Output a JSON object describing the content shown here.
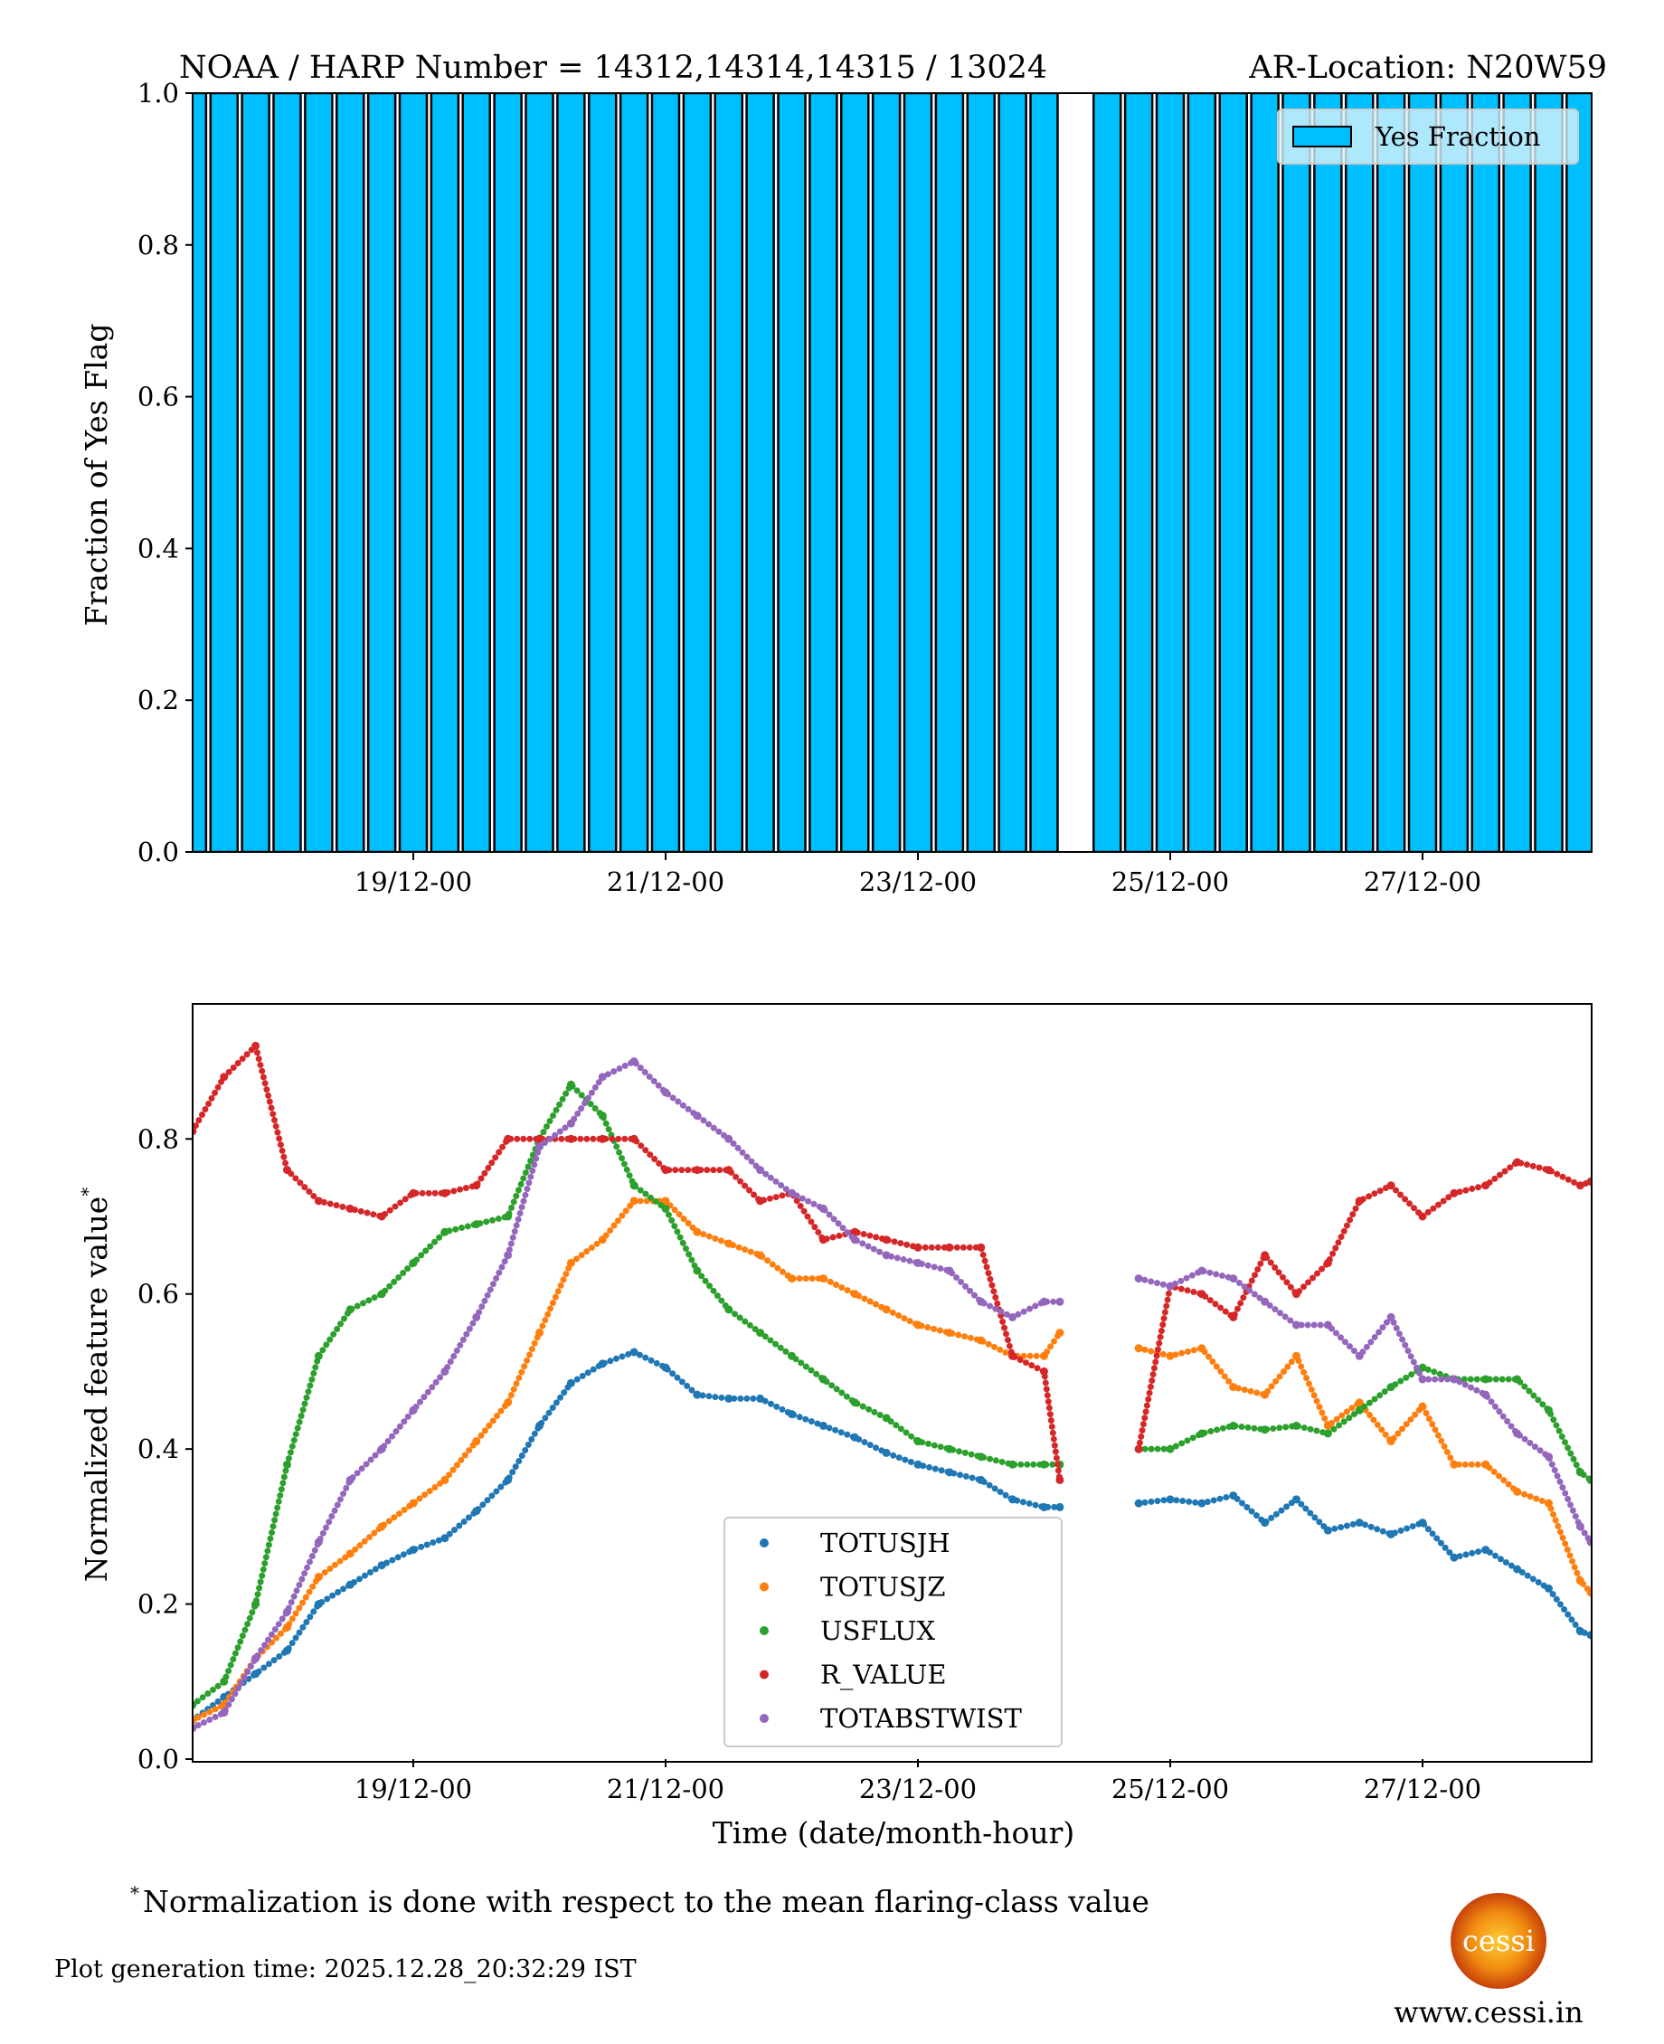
{
  "header": {
    "title_left": "NOAA / HARP Number = 14312,14314,14315 / 13024",
    "title_right": "AR-Location: N20W59"
  },
  "footer": {
    "footnote_mark": "*",
    "footnote": "Normalization is done with respect to the mean flaring-class value",
    "generation_time": "Plot generation time: 2025.12.28_20:32:29 IST",
    "logo_text": "cessi",
    "website": "www.cessi.in"
  },
  "chart_data": [
    {
      "type": "bar",
      "ylabel": "Fraction of Yes Flag",
      "xlabel": "",
      "ylim": [
        0,
        1.0
      ],
      "yticks": [
        "0.0",
        "0.2",
        "0.4",
        "0.6",
        "0.8",
        "1.0"
      ],
      "xticks": [
        "19/12-00",
        "21/12-00",
        "23/12-00",
        "25/12-00",
        "27/12-00"
      ],
      "xlim": [
        "17/12-06",
        "28/12-08"
      ],
      "legend": {
        "placement": "top-right",
        "entries": [
          "Yes Fraction"
        ]
      },
      "color": "#00bfff",
      "edge_color": "#000000",
      "x": [
        "17/12-06",
        "17/12-12",
        "17/12-18",
        "18/12-00",
        "18/12-06",
        "18/12-12",
        "18/12-18",
        "19/12-00",
        "19/12-06",
        "19/12-12",
        "19/12-18",
        "20/12-00",
        "20/12-06",
        "20/12-12",
        "20/12-18",
        "21/12-00",
        "21/12-06",
        "21/12-12",
        "21/12-18",
        "22/12-00",
        "22/12-06",
        "22/12-12",
        "22/12-18",
        "23/12-00",
        "23/12-06",
        "23/12-12",
        "23/12-18",
        "24/12-00",
        "24/12-06",
        "24/12-12",
        "24/12-18",
        "25/12-00",
        "25/12-06",
        "25/12-12",
        "25/12-18",
        "26/12-00",
        "26/12-06",
        "26/12-12",
        "26/12-18",
        "27/12-00",
        "27/12-06",
        "27/12-12",
        "27/12-18",
        "28/12-00",
        "28/12-06"
      ],
      "values": [
        1,
        1,
        1,
        1,
        1,
        1,
        1,
        1,
        1,
        1,
        1,
        1,
        1,
        1,
        1,
        1,
        1,
        1,
        1,
        1,
        1,
        1,
        1,
        1,
        1,
        1,
        1,
        1,
        0,
        1,
        1,
        1,
        1,
        1,
        1,
        1,
        1,
        1,
        1,
        1,
        1,
        1,
        1,
        1,
        1
      ]
    },
    {
      "type": "scatter",
      "xlabel": "Time (date/month-hour)",
      "ylabel": "Normalized feature value",
      "ylabel_mark": "*",
      "ylim": [
        0,
        0.98
      ],
      "yticks": [
        "0.0",
        "0.2",
        "0.4",
        "0.6",
        "0.8"
      ],
      "xticks": [
        "19/12-00",
        "21/12-00",
        "23/12-00",
        "25/12-00",
        "27/12-00"
      ],
      "xlim": [
        "17/12-06",
        "28/12-08"
      ],
      "legend": {
        "placement": "bottom-center"
      },
      "x": [
        "17/12-06",
        "17/12-12",
        "17/12-18",
        "18/12-00",
        "18/12-06",
        "18/12-12",
        "18/12-18",
        "19/12-00",
        "19/12-06",
        "19/12-12",
        "19/12-18",
        "20/12-00",
        "20/12-06",
        "20/12-12",
        "20/12-18",
        "21/12-00",
        "21/12-06",
        "21/12-12",
        "21/12-18",
        "22/12-00",
        "22/12-06",
        "22/12-12",
        "22/12-18",
        "23/12-00",
        "23/12-06",
        "23/12-12",
        "23/12-18",
        "24/12-00",
        "24/12-03",
        "24/12-18",
        "25/12-00",
        "25/12-06",
        "25/12-12",
        "25/12-18",
        "26/12-00",
        "26/12-06",
        "26/12-12",
        "26/12-18",
        "27/12-00",
        "27/12-06",
        "27/12-12",
        "27/12-18",
        "28/12-00",
        "28/12-06",
        "28/12-08"
      ],
      "series": [
        {
          "name": "TOTUSJH",
          "color": "#1f77b4",
          "values": [
            0.05,
            0.08,
            0.11,
            0.14,
            0.2,
            0.225,
            0.25,
            0.27,
            0.285,
            0.32,
            0.36,
            0.43,
            0.485,
            0.51,
            0.525,
            0.505,
            0.47,
            0.465,
            0.465,
            0.445,
            0.43,
            0.415,
            0.395,
            0.38,
            0.37,
            0.36,
            0.335,
            0.325,
            0.325,
            0.33,
            0.335,
            0.33,
            0.34,
            0.305,
            0.335,
            0.295,
            0.305,
            0.29,
            0.305,
            0.26,
            0.27,
            0.245,
            0.22,
            0.165,
            0.16
          ]
        },
        {
          "name": "TOTUSJZ",
          "color": "#ff7f0e",
          "values": [
            0.05,
            0.07,
            0.13,
            0.17,
            0.235,
            0.265,
            0.3,
            0.33,
            0.36,
            0.41,
            0.46,
            0.55,
            0.64,
            0.67,
            0.72,
            0.72,
            0.68,
            0.665,
            0.65,
            0.62,
            0.62,
            0.6,
            0.58,
            0.56,
            0.55,
            0.54,
            0.52,
            0.52,
            0.55,
            0.53,
            0.52,
            0.53,
            0.48,
            0.47,
            0.52,
            0.43,
            0.46,
            0.41,
            0.455,
            0.38,
            0.38,
            0.345,
            0.33,
            0.23,
            0.215
          ]
        },
        {
          "name": "USFLUX",
          "color": "#2ca02c",
          "values": [
            0.07,
            0.1,
            0.2,
            0.38,
            0.52,
            0.58,
            0.6,
            0.64,
            0.68,
            0.69,
            0.7,
            0.8,
            0.87,
            0.83,
            0.74,
            0.71,
            0.63,
            0.58,
            0.55,
            0.52,
            0.49,
            0.46,
            0.44,
            0.41,
            0.4,
            0.39,
            0.38,
            0.38,
            0.38,
            0.4,
            0.4,
            0.42,
            0.43,
            0.425,
            0.43,
            0.42,
            0.45,
            0.48,
            0.505,
            0.49,
            0.49,
            0.49,
            0.45,
            0.37,
            0.36
          ]
        },
        {
          "name": "R_VALUE",
          "color": "#d62728",
          "values": [
            0.81,
            0.88,
            0.92,
            0.76,
            0.72,
            0.71,
            0.7,
            0.73,
            0.73,
            0.74,
            0.8,
            0.8,
            0.8,
            0.8,
            0.8,
            0.76,
            0.76,
            0.76,
            0.72,
            0.73,
            0.67,
            0.68,
            0.67,
            0.66,
            0.66,
            0.66,
            0.52,
            0.5,
            0.36,
            0.4,
            0.61,
            0.6,
            0.57,
            0.65,
            0.6,
            0.64,
            0.72,
            0.74,
            0.7,
            0.73,
            0.74,
            0.77,
            0.76,
            0.74,
            0.745
          ]
        },
        {
          "name": "TOTABSTWIST",
          "color": "#9467bd",
          "values": [
            0.04,
            0.06,
            0.13,
            0.19,
            0.28,
            0.36,
            0.4,
            0.45,
            0.5,
            0.57,
            0.65,
            0.79,
            0.82,
            0.88,
            0.9,
            0.86,
            0.83,
            0.8,
            0.76,
            0.73,
            0.71,
            0.67,
            0.65,
            0.64,
            0.63,
            0.59,
            0.57,
            0.59,
            0.59,
            0.62,
            0.61,
            0.63,
            0.62,
            0.59,
            0.56,
            0.56,
            0.52,
            0.57,
            0.49,
            0.49,
            0.47,
            0.42,
            0.39,
            0.3,
            0.28
          ]
        }
      ]
    }
  ]
}
